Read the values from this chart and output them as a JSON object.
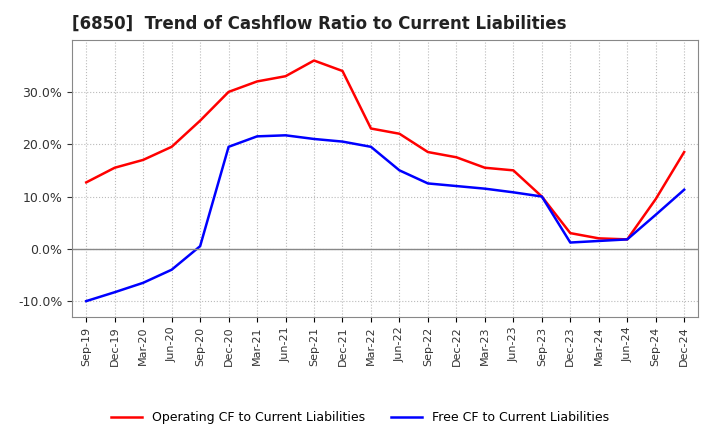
{
  "title": "[6850]  Trend of Cashflow Ratio to Current Liabilities",
  "x_labels": [
    "Sep-19",
    "Dec-19",
    "Mar-20",
    "Jun-20",
    "Sep-20",
    "Dec-20",
    "Mar-21",
    "Jun-21",
    "Sep-21",
    "Dec-21",
    "Mar-22",
    "Jun-22",
    "Sep-22",
    "Dec-22",
    "Mar-23",
    "Jun-23",
    "Sep-23",
    "Dec-23",
    "Mar-24",
    "Jun-24",
    "Sep-24",
    "Dec-24"
  ],
  "operating_cf": [
    0.127,
    0.155,
    0.17,
    0.195,
    0.245,
    0.3,
    0.32,
    0.33,
    0.36,
    0.34,
    0.23,
    0.22,
    0.185,
    0.175,
    0.155,
    0.15,
    0.1,
    0.03,
    0.02,
    0.018,
    0.095,
    0.185
  ],
  "free_cf": [
    -0.1,
    -0.083,
    -0.065,
    -0.04,
    0.005,
    0.195,
    0.215,
    0.217,
    0.21,
    0.205,
    0.195,
    0.15,
    0.125,
    0.12,
    0.115,
    0.108,
    0.1,
    0.012,
    0.015,
    0.018,
    0.065,
    0.113
  ],
  "operating_color": "#FF0000",
  "free_color": "#0000FF",
  "ylim": [
    -0.13,
    0.4
  ],
  "yticks": [
    -0.1,
    0.0,
    0.1,
    0.2,
    0.3
  ],
  "legend_op": "Operating CF to Current Liabilities",
  "legend_free": "Free CF to Current Liabilities",
  "bg_color": "#FFFFFF",
  "plot_bg_color": "#FFFFFF",
  "grid_color": "#AAAAAA",
  "title_fontsize": 12,
  "axis_fontsize": 8,
  "legend_fontsize": 9
}
